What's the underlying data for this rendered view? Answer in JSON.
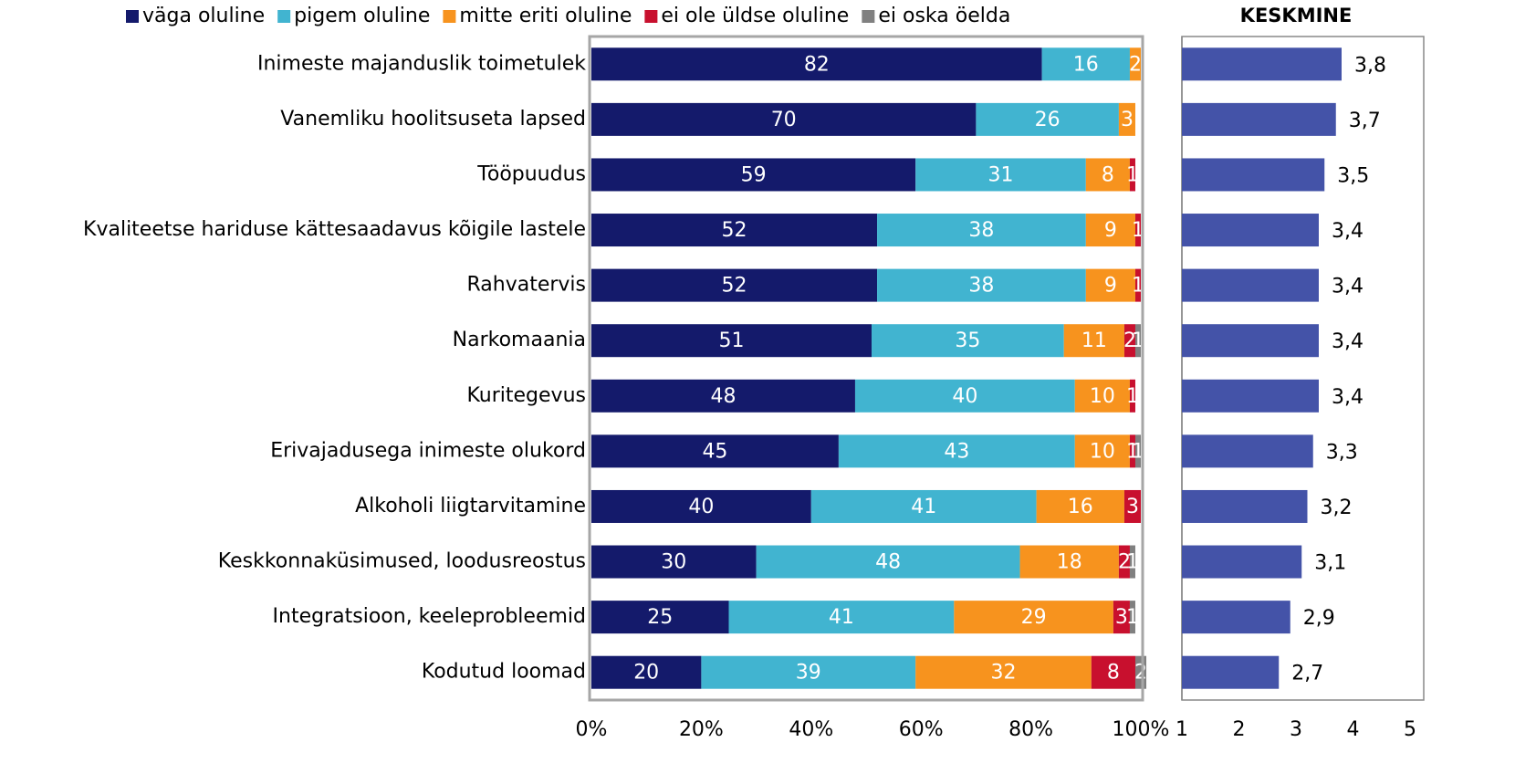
{
  "chart_data": [
    {
      "type": "stacked_bar",
      "orientation": "horizontal",
      "categories": [
        "Inimeste majanduslik toimetulek",
        "Vanemliku hoolitsuseta lapsed",
        "Tööpuudus",
        "Kvaliteetse hariduse kättesaadavus kõigile lastele",
        "Rahvatervis",
        "Narkomaania",
        "Kuritegevus",
        "Erivajadusega inimeste olukord",
        "Alkoholi liigtarvitamine",
        "Keskkonnaküsimused, loodusreostus",
        "Integratsioon, keeleprobleemid",
        "Kodutud loomad"
      ],
      "series": [
        {
          "name": "väga oluline",
          "color": "#141a6b",
          "values": [
            82,
            70,
            59,
            52,
            52,
            51,
            48,
            45,
            40,
            30,
            25,
            20
          ]
        },
        {
          "name": "pigem oluline",
          "color": "#41b4d0",
          "values": [
            16,
            26,
            31,
            38,
            38,
            35,
            40,
            43,
            41,
            48,
            41,
            39
          ]
        },
        {
          "name": "mitte eriti oluline",
          "color": "#f7931e",
          "values": [
            2,
            3,
            8,
            9,
            9,
            11,
            10,
            10,
            16,
            18,
            29,
            32
          ]
        },
        {
          "name": "ei ole üldse oluline",
          "color": "#c8102e",
          "values": [
            0,
            0,
            1,
            1,
            1,
            2,
            1,
            1,
            3,
            2,
            3,
            8
          ]
        },
        {
          "name": "ei oska öelda",
          "color": "#808080",
          "values": [
            0,
            0,
            0,
            0,
            0,
            1,
            0,
            1,
            0,
            1,
            1,
            2
          ]
        }
      ],
      "xlim": [
        0,
        100
      ],
      "xticks": [
        {
          "value": 0,
          "label": "0%"
        },
        {
          "value": 20,
          "label": "20%"
        },
        {
          "value": 40,
          "label": "40%"
        },
        {
          "value": 60,
          "label": "60%"
        },
        {
          "value": 80,
          "label": "80%"
        },
        {
          "value": 100,
          "label": "100%"
        }
      ],
      "legend": "top"
    },
    {
      "type": "bar",
      "orientation": "horizontal",
      "title": "KESKMINE",
      "color": "#4453a8",
      "values": [
        3.8,
        3.7,
        3.5,
        3.4,
        3.4,
        3.4,
        3.4,
        3.3,
        3.2,
        3.1,
        2.9,
        2.7
      ],
      "value_labels": [
        "3,8",
        "3,7",
        "3,5",
        "3,4",
        "3,4",
        "3,4",
        "3,4",
        "3,3",
        "3,2",
        "3,1",
        "2,9",
        "2,7"
      ],
      "xlim": [
        1,
        5
      ],
      "xticks": [
        1,
        2,
        3,
        4,
        5
      ]
    }
  ]
}
